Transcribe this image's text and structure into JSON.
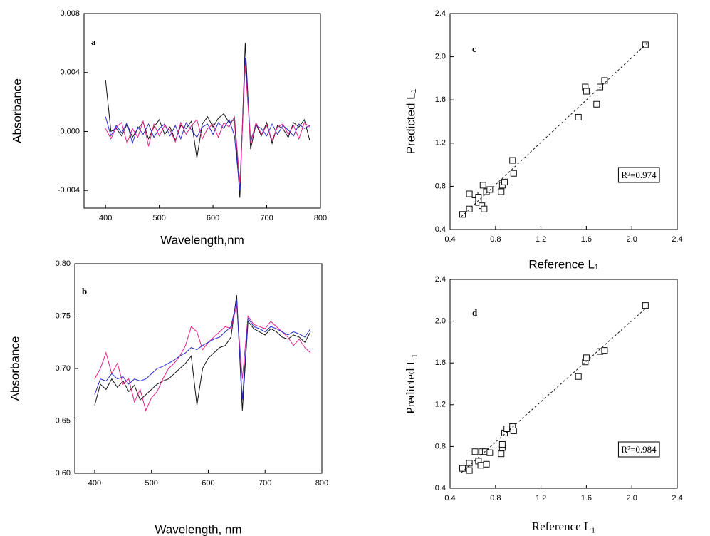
{
  "chart_data": [
    {
      "type": "line",
      "panel_label": "a",
      "xlabel": "Wavelength,nm",
      "ylabel": "Absorbance",
      "x": [
        400,
        410,
        420,
        430,
        440,
        450,
        460,
        470,
        480,
        490,
        500,
        510,
        520,
        530,
        540,
        550,
        560,
        570,
        580,
        590,
        600,
        610,
        620,
        630,
        640,
        650,
        660,
        670,
        680,
        690,
        700,
        710,
        720,
        730,
        740,
        750,
        760,
        770,
        780
      ],
      "series": [
        {
          "color": "#111111",
          "values": [
            0.0035,
            0.0,
            0.0002,
            -0.0003,
            0.0005,
            -0.0004,
            0.0002,
            0.0006,
            -0.0005,
            0.0003,
            0.0008,
            -0.0002,
            0.0003,
            -0.0006,
            0.0004,
            0.0002,
            0.0007,
            -0.0018,
            0.0005,
            0.001,
            0.0003,
            0.0009,
            0.0012,
            0.0006,
            0.0008,
            -0.0045,
            0.006,
            -0.0012,
            0.0005,
            -0.0003,
            0.0006,
            -0.0008,
            0.0004,
            0.0002,
            -0.0004,
            0.0006,
            0.0003,
            0.0008,
            -0.0006
          ]
        },
        {
          "color": "#2a2ac8",
          "values": [
            0.001,
            -0.0003,
            0.0004,
            -0.0001,
            0.0006,
            -0.0008,
            0.0003,
            -0.0002,
            0.0005,
            -0.0004,
            0.0002,
            0.0005,
            -0.0003,
            0.0004,
            -0.0005,
            0.0006,
            0.0001,
            -0.0004,
            0.0003,
            0.0005,
            -0.0002,
            0.0006,
            0.0002,
            0.0008,
            -0.0003,
            -0.004,
            0.005,
            -0.0006,
            0.0004,
            0.0002,
            -0.0003,
            0.0005,
            -0.0002,
            0.0004,
            0.0001,
            -0.0003,
            0.0005,
            0.0002,
            0.0004
          ]
        },
        {
          "color": "#e0208a",
          "values": [
            0.0002,
            -0.0005,
            0.0003,
            0.0006,
            -0.0008,
            0.0002,
            -0.0004,
            0.0007,
            -0.001,
            0.0005,
            -0.0003,
            0.0004,
            0.0001,
            -0.0007,
            0.0006,
            -0.0002,
            0.0004,
            0.0008,
            -0.0005,
            0.0002,
            0.0005,
            -0.0004,
            0.0006,
            0.0003,
            0.001,
            -0.0035,
            0.0045,
            -0.0008,
            0.0006,
            -0.0002,
            0.0004,
            -0.0006,
            0.0003,
            0.0005,
            -0.0002,
            0.0004,
            -0.0005,
            0.0006,
            0.0003
          ]
        }
      ],
      "xlim": [
        360,
        800
      ],
      "xticks": [
        400,
        500,
        600,
        700,
        800
      ],
      "ylim": [
        -0.0052,
        0.008
      ],
      "yticks": [
        -0.004,
        {
          "value": 0,
          "label": "0.000"
        },
        0.004,
        0.008
      ]
    },
    {
      "type": "line",
      "panel_label": "b",
      "xlabel": "Wavelength, nm",
      "ylabel": "Absorbance",
      "x": [
        400,
        410,
        420,
        430,
        440,
        450,
        460,
        470,
        480,
        490,
        500,
        510,
        520,
        530,
        540,
        550,
        560,
        570,
        580,
        590,
        600,
        610,
        620,
        630,
        640,
        650,
        660,
        670,
        680,
        690,
        700,
        710,
        720,
        730,
        740,
        750,
        760,
        770,
        780
      ],
      "series": [
        {
          "color": "#111111",
          "values": [
            0.665,
            0.685,
            0.68,
            0.69,
            0.682,
            0.688,
            0.678,
            0.684,
            0.67,
            0.675,
            0.68,
            0.685,
            0.688,
            0.69,
            0.695,
            0.7,
            0.705,
            0.712,
            0.665,
            0.7,
            0.71,
            0.715,
            0.72,
            0.722,
            0.73,
            0.77,
            0.66,
            0.745,
            0.738,
            0.735,
            0.732,
            0.738,
            0.735,
            0.73,
            0.728,
            0.732,
            0.73,
            0.725,
            0.735
          ]
        },
        {
          "color": "#e0208a",
          "values": [
            0.69,
            0.7,
            0.715,
            0.695,
            0.705,
            0.685,
            0.69,
            0.668,
            0.68,
            0.66,
            0.672,
            0.678,
            0.69,
            0.7,
            0.705,
            0.712,
            0.722,
            0.74,
            0.735,
            0.718,
            0.725,
            0.73,
            0.735,
            0.74,
            0.738,
            0.76,
            0.69,
            0.75,
            0.742,
            0.74,
            0.738,
            0.745,
            0.74,
            0.735,
            0.73,
            0.722,
            0.728,
            0.72,
            0.715
          ]
        },
        {
          "color": "#2a2ac8",
          "values": [
            0.675,
            0.69,
            0.688,
            0.695,
            0.69,
            0.692,
            0.685,
            0.69,
            0.688,
            0.69,
            0.695,
            0.7,
            0.702,
            0.705,
            0.708,
            0.712,
            0.715,
            0.72,
            0.718,
            0.722,
            0.725,
            0.728,
            0.73,
            0.735,
            0.74,
            0.765,
            0.67,
            0.748,
            0.74,
            0.738,
            0.735,
            0.74,
            0.738,
            0.735,
            0.732,
            0.735,
            0.733,
            0.73,
            0.738
          ]
        }
      ],
      "xlim": [
        365,
        800
      ],
      "xticks": [
        400,
        500,
        600,
        700,
        800
      ],
      "ylim": [
        0.6,
        0.8
      ],
      "yticks": [
        {
          "value": 0.6,
          "label": "0.60"
        },
        {
          "value": 0.65,
          "label": "0.65"
        },
        {
          "value": 0.7,
          "label": "0.70"
        },
        {
          "value": 0.75,
          "label": "0.75"
        },
        {
          "value": 0.8,
          "label": "0.80"
        }
      ]
    },
    {
      "type": "scatter",
      "panel_label": "c",
      "xlabel": "Reference L₁",
      "ylabel": "Predicted L₁",
      "annotation": "R²=0.974",
      "series": [
        {
          "color": "#111111",
          "marker": "square",
          "x": [
            0.51,
            0.57,
            0.57,
            0.62,
            0.65,
            0.65,
            0.68,
            0.69,
            0.7,
            0.72,
            0.75,
            0.85,
            0.86,
            0.88,
            0.95,
            0.96,
            1.53,
            1.59,
            1.6,
            1.69,
            1.72,
            1.76,
            2.12
          ],
          "values": [
            0.54,
            0.59,
            0.73,
            0.72,
            0.65,
            0.7,
            0.62,
            0.81,
            0.59,
            0.75,
            0.77,
            0.75,
            0.81,
            0.84,
            1.04,
            0.92,
            1.44,
            1.72,
            1.68,
            1.56,
            1.72,
            1.78,
            2.11
          ]
        },
        {
          "color": "#111111",
          "line": "dashed",
          "x": [
            0.5,
            2.13
          ],
          "values": [
            0.52,
            2.12
          ]
        }
      ],
      "xlim": [
        0.4,
        2.4
      ],
      "xticks": [
        0.4,
        0.8,
        1.2,
        1.6,
        {
          "value": 2,
          "label": "2.0"
        },
        2.4
      ],
      "ylim": [
        0.4,
        2.4
      ],
      "yticks": [
        0.4,
        0.8,
        1.2,
        1.6,
        {
          "value": 2,
          "label": "2.0"
        },
        2.4
      ]
    },
    {
      "type": "scatter",
      "panel_label": "d",
      "xlabel": "Reference L₁",
      "ylabel": "Predicted L₁",
      "annotation": "R²=0.984",
      "series": [
        {
          "color": "#111111",
          "marker": "square",
          "x": [
            0.51,
            0.57,
            0.57,
            0.62,
            0.65,
            0.67,
            0.68,
            0.71,
            0.72,
            0.75,
            0.85,
            0.86,
            0.86,
            0.88,
            0.9,
            0.95,
            0.96,
            1.53,
            1.59,
            1.6,
            1.72,
            1.76,
            2.12
          ],
          "values": [
            0.59,
            0.57,
            0.64,
            0.75,
            0.66,
            0.62,
            0.75,
            0.75,
            0.63,
            0.74,
            0.73,
            0.79,
            0.82,
            0.93,
            0.97,
            0.99,
            0.95,
            1.47,
            1.61,
            1.65,
            1.71,
            1.72,
            2.15
          ]
        },
        {
          "color": "#111111",
          "line": "dashed",
          "x": [
            0.5,
            2.13
          ],
          "values": [
            0.55,
            2.13
          ]
        }
      ],
      "xlim": [
        0.4,
        2.4
      ],
      "xticks": [
        0.4,
        0.8,
        1.2,
        1.6,
        {
          "value": 2,
          "label": "2.0"
        },
        2.4
      ],
      "ylim": [
        0.4,
        2.4
      ],
      "yticks": [
        0.4,
        0.8,
        1.2,
        1.6,
        {
          "value": 2,
          "label": "2.0"
        },
        2.4
      ]
    }
  ]
}
